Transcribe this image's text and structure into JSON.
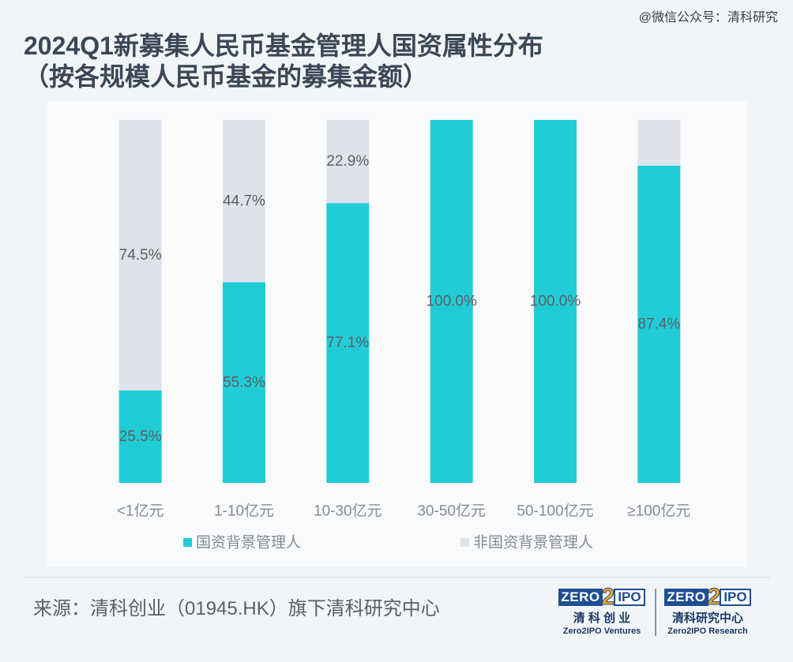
{
  "watermark": "@微信公众号：清科研究",
  "chart_data": {
    "type": "bar",
    "stacked": true,
    "title": "2024Q1新募集人民币基金管理人国资属性分布",
    "subtitle": "（按各规模人民币基金的募集金额）",
    "categories": [
      "<1亿元",
      "1-10亿元",
      "10-30亿元",
      "30-50亿元",
      "50-100亿元",
      "≥100亿元"
    ],
    "series": [
      {
        "name": "国资背景管理人",
        "color": "#20cdd6",
        "values": [
          25.5,
          55.3,
          77.1,
          100.0,
          100.0,
          87.4
        ],
        "labels": [
          "25.5%",
          "55.3%",
          "77.1%",
          "100.0%",
          "100.0%",
          "87.4%"
        ]
      },
      {
        "name": "非国资背景管理人",
        "color": "#dee2eb",
        "values": [
          74.5,
          44.7,
          22.9,
          0,
          0,
          12.6
        ],
        "labels": [
          "74.5%",
          "44.7%",
          "22.9%",
          null,
          null,
          null
        ]
      }
    ],
    "ylim": [
      0,
      100
    ],
    "grid": false,
    "legend": "bottom"
  },
  "source": "来源：清科创业（01945.HK）旗下清科研究中心",
  "logos": [
    {
      "mark_zero": "ZERO",
      "mark_two": "2",
      "mark_ipo": "IPO",
      "cn": "清 科 创 业",
      "en": "Zero2IPO Ventures"
    },
    {
      "mark_zero": "ZERO",
      "mark_two": "2",
      "mark_ipo": "IPO",
      "cn": "清科研究中心",
      "en": "Zero2IPO Research"
    }
  ],
  "colors": {
    "title": "#3b4757",
    "brand_blue": "#1f4e95",
    "brand_orange": "#f2a61c"
  }
}
